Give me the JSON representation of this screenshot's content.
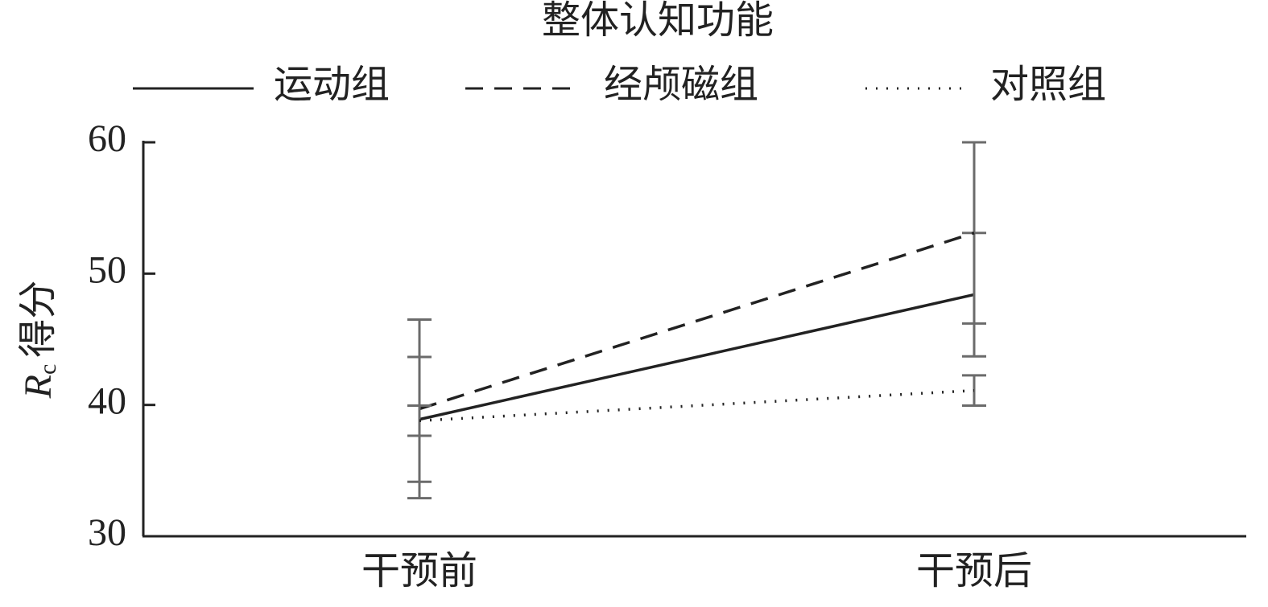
{
  "chart_data": {
    "type": "line",
    "title": "整体认知功能",
    "ylabel_var": "R",
    "ylabel_sub": "c",
    "ylabel": "得分",
    "categories": [
      "干预前",
      "干预后"
    ],
    "series": [
      {
        "name": "运动组",
        "color": "#222222",
        "dash": "solid",
        "values": [
          38.9,
          48.4
        ],
        "errors": [
          4.75,
          4.7
        ]
      },
      {
        "name": "经颅磁组",
        "color": "#222222",
        "dash": "dashed",
        "values": [
          39.7,
          53.1
        ],
        "errors": [
          6.8,
          6.9
        ]
      },
      {
        "name": "对照组",
        "color": "#222222",
        "dash": "dotted",
        "values": [
          38.8,
          41.1
        ],
        "errors": [
          1.15,
          1.15
        ]
      }
    ],
    "error_color": "#6b6b6b",
    "ylim": [
      30,
      60
    ],
    "yticks": [
      30,
      40,
      50,
      60
    ]
  }
}
